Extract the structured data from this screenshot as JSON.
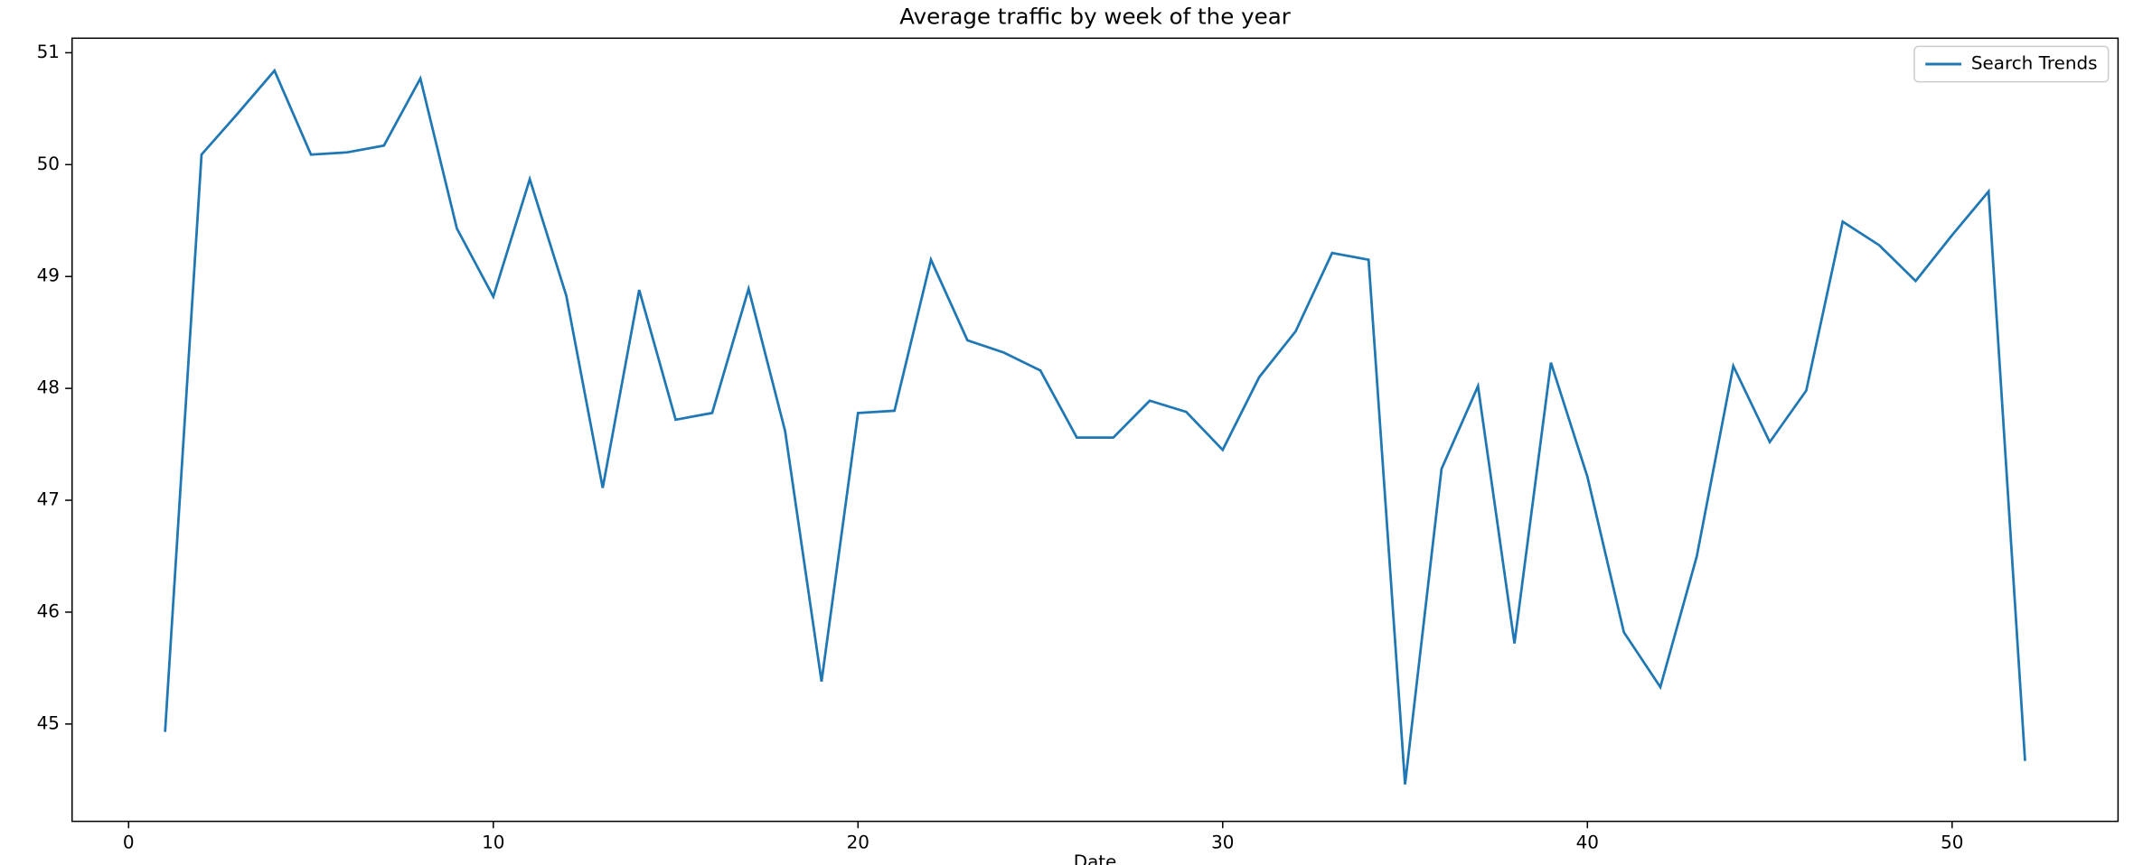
{
  "chart_data": {
    "type": "line",
    "title": "Average traffic by week of the year",
    "xlabel": "Date",
    "x": [
      1,
      2,
      3,
      4,
      5,
      6,
      7,
      8,
      9,
      10,
      11,
      12,
      13,
      14,
      15,
      16,
      17,
      18,
      19,
      20,
      21,
      22,
      23,
      24,
      25,
      26,
      27,
      28,
      29,
      30,
      31,
      32,
      33,
      34,
      35,
      36,
      37,
      38,
      39,
      40,
      41,
      42,
      43,
      44,
      45,
      46,
      47,
      48,
      49,
      50,
      51,
      52
    ],
    "series": [
      {
        "name": "Search Trends",
        "color": "#1f77b4",
        "values": [
          44.93,
          50.09,
          50.46,
          50.84,
          50.09,
          50.11,
          50.17,
          50.77,
          49.43,
          48.82,
          49.87,
          48.83,
          47.11,
          48.88,
          47.72,
          47.78,
          48.89,
          47.62,
          45.38,
          47.78,
          47.8,
          49.15,
          48.43,
          48.32,
          48.16,
          47.56,
          47.56,
          47.89,
          47.79,
          47.45,
          48.1,
          48.51,
          49.21,
          49.15,
          44.46,
          47.28,
          48.02,
          45.72,
          48.23,
          47.21,
          45.82,
          45.33,
          46.5,
          48.2,
          47.52,
          47.98,
          49.49,
          49.28,
          48.96,
          49.37,
          49.76,
          44.67
        ]
      }
    ],
    "xlim": [
      -1.55,
      54.55
    ],
    "xticks": [
      0,
      10,
      20,
      30,
      40,
      50
    ],
    "ylim": [
      44.13,
      51.13
    ],
    "yticks": [
      45,
      46,
      47,
      48,
      49,
      50,
      51
    ],
    "grid": false,
    "legend": "upper right"
  }
}
